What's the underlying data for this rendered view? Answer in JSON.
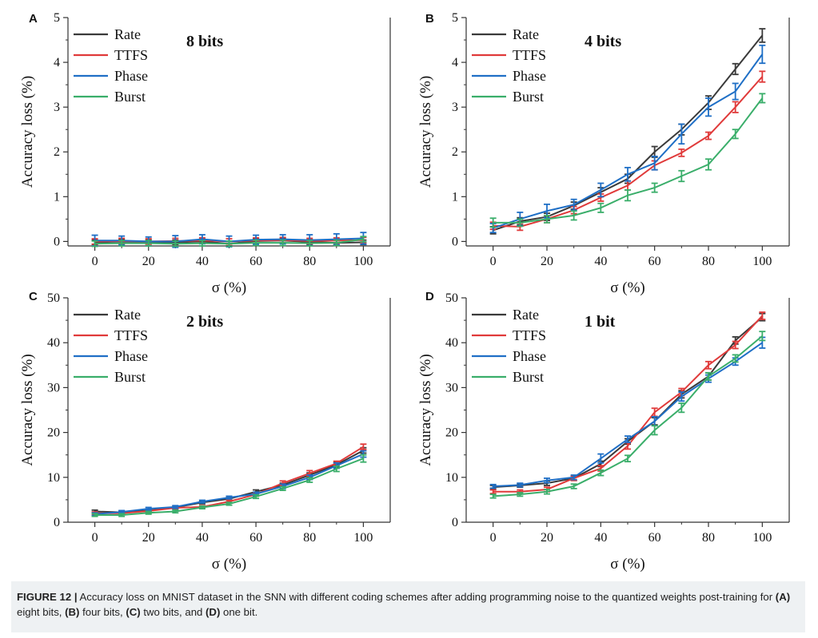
{
  "chart_data": [
    {
      "type": "line",
      "panel": "A",
      "title": "8 bits",
      "xlabel": "σ (%)",
      "ylabel": "Accuracy loss (%)",
      "xlim": [
        -10,
        110
      ],
      "ylim": [
        -0.1,
        5
      ],
      "xticks": [
        0,
        20,
        40,
        60,
        80,
        100
      ],
      "yticks": [
        0,
        1,
        2,
        3,
        4,
        5
      ],
      "x": [
        0,
        10,
        20,
        30,
        40,
        50,
        60,
        70,
        80,
        90,
        100
      ],
      "series": [
        {
          "name": "Rate",
          "color": "#3a3a3a",
          "values": [
            -0.02,
            0.0,
            -0.01,
            -0.02,
            0.0,
            -0.05,
            0.01,
            0.02,
            -0.01,
            -0.03,
            -0.02
          ],
          "err": [
            0.05,
            0.05,
            0.05,
            0.05,
            0.05,
            0.05,
            0.05,
            0.05,
            0.05,
            0.05,
            0.05
          ]
        },
        {
          "name": "TTFS",
          "color": "#e03a3a",
          "values": [
            0.0,
            0.01,
            0.0,
            0.01,
            0.02,
            0.0,
            0.02,
            0.03,
            0.01,
            0.02,
            0.03
          ],
          "err": [
            0.06,
            0.06,
            0.06,
            0.06,
            0.06,
            0.06,
            0.06,
            0.06,
            0.06,
            0.06,
            0.06
          ]
        },
        {
          "name": "Phase",
          "color": "#1f6fc6",
          "values": [
            0.02,
            0.02,
            0.0,
            0.0,
            0.05,
            0.0,
            0.04,
            0.05,
            0.03,
            0.05,
            0.07
          ],
          "err": [
            0.12,
            0.1,
            0.1,
            0.13,
            0.1,
            0.12,
            0.1,
            0.1,
            0.12,
            0.12,
            0.13
          ]
        },
        {
          "name": "Burst",
          "color": "#3aae6a",
          "values": [
            -0.05,
            -0.04,
            -0.04,
            -0.05,
            -0.04,
            -0.05,
            -0.03,
            -0.03,
            -0.04,
            -0.03,
            0.05
          ],
          "err": [
            0.06,
            0.06,
            0.06,
            0.06,
            0.06,
            0.06,
            0.06,
            0.06,
            0.06,
            0.06,
            0.06
          ]
        }
      ]
    },
    {
      "type": "line",
      "panel": "B",
      "title": "4 bits",
      "xlabel": "σ (%)",
      "ylabel": "Accuracy loss (%)",
      "xlim": [
        -10,
        110
      ],
      "ylim": [
        -0.1,
        5
      ],
      "xticks": [
        0,
        20,
        40,
        60,
        80,
        100
      ],
      "yticks": [
        0,
        1,
        2,
        3,
        4,
        5
      ],
      "x": [
        0,
        10,
        20,
        30,
        40,
        50,
        60,
        70,
        80,
        90,
        100
      ],
      "series": [
        {
          "name": "Rate",
          "color": "#3a3a3a",
          "values": [
            0.25,
            0.45,
            0.55,
            0.8,
            1.1,
            1.4,
            2.0,
            2.5,
            3.1,
            3.85,
            4.6
          ],
          "err": [
            0.08,
            0.08,
            0.08,
            0.08,
            0.1,
            0.1,
            0.12,
            0.12,
            0.15,
            0.12,
            0.15
          ]
        },
        {
          "name": "TTFS",
          "color": "#e03a3a",
          "values": [
            0.35,
            0.33,
            0.5,
            0.7,
            0.98,
            1.25,
            1.7,
            1.98,
            2.36,
            3.0,
            3.68
          ],
          "err": [
            0.08,
            0.08,
            0.08,
            0.08,
            0.08,
            0.1,
            0.1,
            0.08,
            0.08,
            0.12,
            0.12
          ]
        },
        {
          "name": "Phase",
          "color": "#1f6fc6",
          "values": [
            0.3,
            0.5,
            0.68,
            0.82,
            1.15,
            1.5,
            1.75,
            2.4,
            3.0,
            3.35,
            4.18
          ],
          "err": [
            0.1,
            0.15,
            0.15,
            0.12,
            0.15,
            0.15,
            0.15,
            0.22,
            0.2,
            0.18,
            0.2
          ]
        },
        {
          "name": "Burst",
          "color": "#3aae6a",
          "values": [
            0.42,
            0.42,
            0.5,
            0.58,
            0.75,
            1.03,
            1.2,
            1.46,
            1.72,
            2.4,
            3.2
          ],
          "err": [
            0.1,
            0.08,
            0.08,
            0.1,
            0.1,
            0.12,
            0.1,
            0.12,
            0.12,
            0.1,
            0.1
          ]
        }
      ]
    },
    {
      "type": "line",
      "panel": "C",
      "title": "2 bits",
      "xlabel": "σ (%)",
      "ylabel": "Accuracy loss (%)",
      "xlim": [
        -10,
        110
      ],
      "ylim": [
        0,
        50
      ],
      "xticks": [
        0,
        20,
        40,
        60,
        80,
        100
      ],
      "yticks": [
        0,
        10,
        20,
        30,
        40,
        50
      ],
      "x": [
        0,
        10,
        20,
        30,
        40,
        50,
        60,
        70,
        80,
        90,
        100
      ],
      "series": [
        {
          "name": "Rate",
          "color": "#3a3a3a",
          "values": [
            2.4,
            2.2,
            2.6,
            3.3,
            4.4,
            5.2,
            6.8,
            8.3,
            10.5,
            12.8,
            16.0
          ],
          "err": [
            0.3,
            0.3,
            0.3,
            0.3,
            0.3,
            0.3,
            0.4,
            0.4,
            0.5,
            0.5,
            0.6
          ]
        },
        {
          "name": "TTFS",
          "color": "#e03a3a",
          "values": [
            2.0,
            2.0,
            2.5,
            3.2,
            3.4,
            4.6,
            6.2,
            8.7,
            10.9,
            13.1,
            16.8
          ],
          "err": [
            0.3,
            0.3,
            0.3,
            0.3,
            0.3,
            0.3,
            0.4,
            0.5,
            0.6,
            0.5,
            0.6
          ]
        },
        {
          "name": "Phase",
          "color": "#1f6fc6",
          "values": [
            1.8,
            2.3,
            3.0,
            3.4,
            4.6,
            5.5,
            6.3,
            8.0,
            10.0,
            12.6,
            15.2
          ],
          "err": [
            0.3,
            0.3,
            0.3,
            0.3,
            0.3,
            0.3,
            0.4,
            0.5,
            0.5,
            0.6,
            0.7
          ]
        },
        {
          "name": "Burst",
          "color": "#3aae6a",
          "values": [
            1.6,
            1.6,
            2.1,
            2.4,
            3.3,
            4.1,
            5.7,
            7.5,
            9.4,
            11.9,
            14.2
          ],
          "err": [
            0.3,
            0.3,
            0.3,
            0.3,
            0.3,
            0.3,
            0.4,
            0.4,
            0.5,
            0.6,
            0.8
          ]
        }
      ]
    },
    {
      "type": "line",
      "panel": "D",
      "title": "1 bit",
      "xlabel": "σ (%)",
      "ylabel": "Accuracy loss (%)",
      "xlim": [
        -10,
        110
      ],
      "ylim": [
        0,
        50
      ],
      "xticks": [
        0,
        20,
        40,
        60,
        80,
        100
      ],
      "yticks": [
        0,
        10,
        20,
        30,
        40,
        50
      ],
      "x": [
        0,
        10,
        20,
        30,
        40,
        50,
        60,
        70,
        80,
        90,
        100
      ],
      "series": [
        {
          "name": "Rate",
          "color": "#3a3a3a",
          "values": [
            7.8,
            8.2,
            8.7,
            9.8,
            13.0,
            18.0,
            22.5,
            28.5,
            32.5,
            40.5,
            45.7
          ],
          "err": [
            0.4,
            0.4,
            0.5,
            0.5,
            0.6,
            0.6,
            0.8,
            0.8,
            0.8,
            0.8,
            0.8
          ]
        },
        {
          "name": "TTFS",
          "color": "#e03a3a",
          "values": [
            6.8,
            6.8,
            7.3,
            9.8,
            12.0,
            17.0,
            24.5,
            29.0,
            35.0,
            39.5,
            46.0
          ],
          "err": [
            0.4,
            0.4,
            0.5,
            0.5,
            0.6,
            0.7,
            0.9,
            0.8,
            0.8,
            0.8,
            0.8
          ]
        },
        {
          "name": "Phase",
          "color": "#1f6fc6",
          "values": [
            8.0,
            8.3,
            9.3,
            10.0,
            14.2,
            18.5,
            22.5,
            28.0,
            32.0,
            35.8,
            40.0
          ],
          "err": [
            0.4,
            0.4,
            0.5,
            0.5,
            1.0,
            0.7,
            1.0,
            1.0,
            0.8,
            0.8,
            1.2
          ]
        },
        {
          "name": "Burst",
          "color": "#3aae6a",
          "values": [
            5.8,
            6.2,
            6.8,
            8.0,
            11.0,
            14.2,
            20.5,
            25.5,
            32.5,
            36.5,
            41.5
          ],
          "err": [
            0.4,
            0.4,
            0.5,
            0.5,
            0.6,
            0.7,
            1.0,
            1.0,
            0.8,
            0.8,
            1.0
          ]
        }
      ]
    }
  ],
  "caption": {
    "label": "FIGURE 12 |",
    "text": " Accuracy loss on MNIST dataset in the SNN with different coding schemes after adding programming noise to the quantized weights post-training for ",
    "a_label": "(A)",
    "a_text": " eight bits, ",
    "b_label": "(B)",
    "b_text": " four bits, ",
    "c_label": "(C)",
    "c_text": " two bits, and ",
    "d_label": "(D)",
    "d_text": " one bit."
  }
}
